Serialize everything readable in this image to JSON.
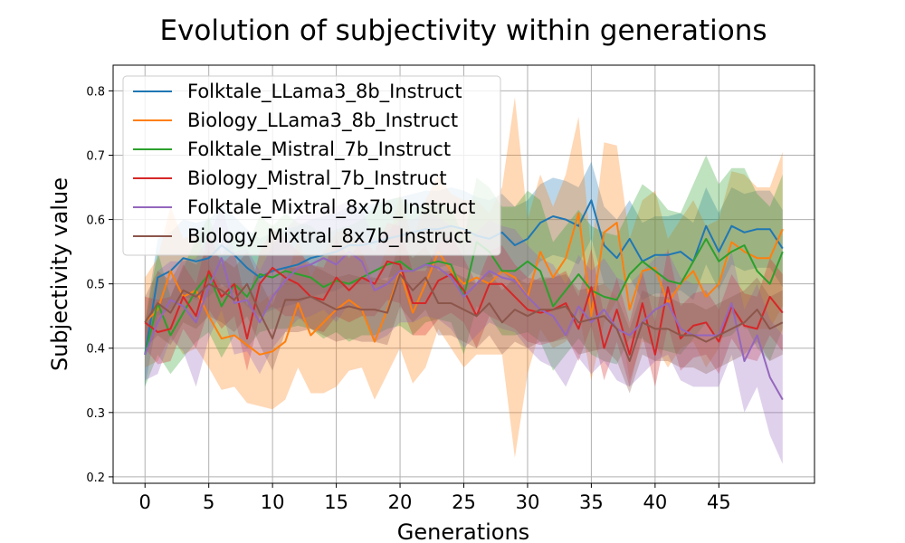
{
  "chart_data": {
    "type": "line",
    "title": "Evolution of subjectivity within generations",
    "xlabel": "Generations",
    "ylabel": "Subjectivity value",
    "xlim": [
      -2.5,
      52.5
    ],
    "ylim": [
      0.19,
      0.84
    ],
    "xticks": [
      0,
      5,
      10,
      15,
      20,
      25,
      30,
      35,
      40,
      45
    ],
    "yticks": [
      0.2,
      0.3,
      0.4,
      0.5,
      0.6,
      0.7,
      0.8
    ],
    "grid": true,
    "legend_position": "top-left",
    "x": [
      0,
      1,
      2,
      3,
      4,
      5,
      6,
      7,
      8,
      9,
      10,
      11,
      12,
      13,
      14,
      15,
      16,
      17,
      18,
      19,
      20,
      21,
      22,
      23,
      24,
      25,
      26,
      27,
      28,
      29,
      30,
      31,
      32,
      33,
      34,
      35,
      36,
      37,
      38,
      39,
      40,
      41,
      42,
      43,
      44,
      45,
      46,
      47,
      48,
      49,
      50
    ],
    "series": [
      {
        "name": "Folktale_LLama3_8b_Instruct",
        "color": "#1f77b4",
        "values": [
          0.39,
          0.51,
          0.52,
          0.54,
          0.535,
          0.54,
          0.56,
          0.545,
          0.525,
          0.51,
          0.52,
          0.525,
          0.53,
          0.54,
          0.545,
          0.55,
          0.56,
          0.56,
          0.565,
          0.57,
          0.575,
          0.58,
          0.585,
          0.585,
          0.59,
          0.585,
          0.575,
          0.57,
          0.58,
          0.56,
          0.57,
          0.595,
          0.605,
          0.6,
          0.59,
          0.63,
          0.56,
          0.54,
          0.57,
          0.535,
          0.545,
          0.545,
          0.55,
          0.535,
          0.59,
          0.55,
          0.59,
          0.58,
          0.585,
          0.585,
          0.555
        ],
        "band": [
          0.05,
          0.06,
          0.06,
          0.06,
          0.06,
          0.06,
          0.06,
          0.06,
          0.06,
          0.06,
          0.06,
          0.06,
          0.06,
          0.06,
          0.06,
          0.06,
          0.06,
          0.06,
          0.06,
          0.06,
          0.06,
          0.06,
          0.06,
          0.06,
          0.06,
          0.06,
          0.06,
          0.06,
          0.06,
          0.06,
          0.06,
          0.06,
          0.06,
          0.06,
          0.06,
          0.06,
          0.06,
          0.06,
          0.06,
          0.06,
          0.06,
          0.06,
          0.06,
          0.06,
          0.06,
          0.06,
          0.06,
          0.06,
          0.06,
          0.06,
          0.06
        ]
      },
      {
        "name": "Biology_LLama3_8b_Instruct",
        "color": "#ff7f0e",
        "values": [
          0.44,
          0.46,
          0.52,
          0.48,
          0.49,
          0.45,
          0.415,
          0.42,
          0.405,
          0.39,
          0.395,
          0.41,
          0.47,
          0.42,
          0.44,
          0.46,
          0.475,
          0.46,
          0.41,
          0.46,
          0.52,
          0.455,
          0.5,
          0.55,
          0.52,
          0.5,
          0.51,
          0.5,
          0.52,
          0.51,
          0.48,
          0.55,
          0.51,
          0.54,
          0.61,
          0.45,
          0.58,
          0.595,
          0.46,
          0.52,
          0.525,
          0.47,
          0.5,
          0.52,
          0.48,
          0.5,
          0.565,
          0.55,
          0.54,
          0.54,
          0.585
        ],
        "band": [
          0.07,
          0.08,
          0.1,
          0.09,
          0.09,
          0.08,
          0.08,
          0.08,
          0.09,
          0.08,
          0.09,
          0.09,
          0.1,
          0.09,
          0.11,
          0.12,
          0.11,
          0.09,
          0.09,
          0.1,
          0.12,
          0.11,
          0.13,
          0.12,
          0.12,
          0.13,
          0.12,
          0.11,
          0.13,
          0.28,
          0.12,
          0.12,
          0.11,
          0.13,
          0.15,
          0.1,
          0.14,
          0.12,
          0.11,
          0.11,
          0.12,
          0.1,
          0.1,
          0.11,
          0.11,
          0.1,
          0.11,
          0.12,
          0.11,
          0.11,
          0.12
        ]
      },
      {
        "name": "Folktale_Mistral_7b_Instruct",
        "color": "#2ca02c",
        "values": [
          0.39,
          0.47,
          0.42,
          0.455,
          0.49,
          0.515,
          0.465,
          0.5,
          0.48,
          0.515,
          0.51,
          0.52,
          0.515,
          0.51,
          0.495,
          0.505,
          0.5,
          0.51,
          0.52,
          0.53,
          0.535,
          0.52,
          0.53,
          0.535,
          0.53,
          0.48,
          0.565,
          0.55,
          0.52,
          0.52,
          0.535,
          0.52,
          0.465,
          0.49,
          0.515,
          0.49,
          0.48,
          0.475,
          0.515,
          0.535,
          0.52,
          0.505,
          0.5,
          0.535,
          0.57,
          0.535,
          0.55,
          0.56,
          0.52,
          0.5,
          0.55
        ],
        "band": [
          0.05,
          0.08,
          0.06,
          0.07,
          0.08,
          0.09,
          0.08,
          0.08,
          0.08,
          0.09,
          0.08,
          0.09,
          0.08,
          0.08,
          0.08,
          0.08,
          0.09,
          0.09,
          0.1,
          0.1,
          0.1,
          0.1,
          0.09,
          0.09,
          0.09,
          0.09,
          0.1,
          0.1,
          0.1,
          0.1,
          0.11,
          0.11,
          0.1,
          0.1,
          0.1,
          0.1,
          0.1,
          0.1,
          0.1,
          0.12,
          0.12,
          0.11,
          0.11,
          0.12,
          0.13,
          0.12,
          0.13,
          0.12,
          0.12,
          0.12,
          0.12
        ]
      },
      {
        "name": "Biology_Mistral_7b_Instruct",
        "color": "#d62728",
        "values": [
          0.44,
          0.425,
          0.43,
          0.48,
          0.45,
          0.52,
          0.48,
          0.5,
          0.415,
          0.5,
          0.525,
          0.51,
          0.5,
          0.48,
          0.475,
          0.51,
          0.49,
          0.51,
          0.5,
          0.535,
          0.53,
          0.47,
          0.47,
          0.505,
          0.515,
          0.49,
          0.45,
          0.5,
          0.5,
          0.48,
          0.46,
          0.455,
          0.46,
          0.47,
          0.43,
          0.495,
          0.4,
          0.46,
          0.39,
          0.47,
          0.39,
          0.495,
          0.415,
          0.435,
          0.44,
          0.41,
          0.465,
          0.435,
          0.43,
          0.48,
          0.455
        ],
        "band": [
          0.04,
          0.05,
          0.05,
          0.05,
          0.05,
          0.06,
          0.05,
          0.05,
          0.05,
          0.05,
          0.06,
          0.06,
          0.05,
          0.05,
          0.05,
          0.06,
          0.05,
          0.06,
          0.05,
          0.06,
          0.06,
          0.05,
          0.05,
          0.06,
          0.06,
          0.05,
          0.05,
          0.05,
          0.06,
          0.05,
          0.05,
          0.05,
          0.05,
          0.05,
          0.05,
          0.06,
          0.05,
          0.05,
          0.05,
          0.05,
          0.05,
          0.06,
          0.05,
          0.05,
          0.05,
          0.05,
          0.05,
          0.05,
          0.05,
          0.06,
          0.06
        ]
      },
      {
        "name": "Folktale_Mixtral_8x7b_Instruct",
        "color": "#9467bd",
        "values": [
          0.39,
          0.44,
          0.475,
          0.465,
          0.44,
          0.495,
          0.54,
          0.47,
          0.475,
          0.44,
          0.48,
          0.505,
          0.525,
          0.53,
          0.54,
          0.53,
          0.55,
          0.535,
          0.49,
          0.5,
          0.52,
          0.52,
          0.53,
          0.525,
          0.51,
          0.48,
          0.5,
          0.52,
          0.51,
          0.505,
          0.48,
          0.46,
          0.45,
          0.42,
          0.465,
          0.44,
          0.46,
          0.43,
          0.42,
          0.44,
          0.46,
          0.47,
          0.43,
          0.42,
          0.42,
          0.42,
          0.47,
          0.38,
          0.42,
          0.355,
          0.32
        ],
        "band": [
          0.04,
          0.08,
          0.06,
          0.07,
          0.1,
          0.08,
          0.08,
          0.08,
          0.08,
          0.08,
          0.08,
          0.08,
          0.08,
          0.08,
          0.08,
          0.09,
          0.08,
          0.08,
          0.08,
          0.08,
          0.08,
          0.08,
          0.08,
          0.08,
          0.08,
          0.08,
          0.08,
          0.08,
          0.08,
          0.08,
          0.08,
          0.08,
          0.08,
          0.08,
          0.08,
          0.08,
          0.08,
          0.08,
          0.08,
          0.08,
          0.08,
          0.08,
          0.08,
          0.08,
          0.08,
          0.08,
          0.08,
          0.08,
          0.08,
          0.09,
          0.1
        ]
      },
      {
        "name": "Biology_Mixtral_8x7b_Instruct",
        "color": "#8c564b",
        "values": [
          0.44,
          0.47,
          0.455,
          0.49,
          0.48,
          0.5,
          0.49,
          0.475,
          0.5,
          0.455,
          0.415,
          0.475,
          0.475,
          0.48,
          0.47,
          0.46,
          0.465,
          0.46,
          0.46,
          0.455,
          0.515,
          0.49,
          0.51,
          0.47,
          0.47,
          0.46,
          0.45,
          0.47,
          0.44,
          0.46,
          0.45,
          0.46,
          0.46,
          0.465,
          0.44,
          0.445,
          0.45,
          0.43,
          0.38,
          0.44,
          0.43,
          0.43,
          0.42,
          0.42,
          0.41,
          0.42,
          0.43,
          0.44,
          0.46,
          0.43,
          0.44
        ],
        "band": [
          0.04,
          0.05,
          0.05,
          0.05,
          0.05,
          0.05,
          0.05,
          0.05,
          0.05,
          0.05,
          0.05,
          0.05,
          0.05,
          0.05,
          0.05,
          0.05,
          0.05,
          0.05,
          0.05,
          0.05,
          0.05,
          0.05,
          0.05,
          0.05,
          0.05,
          0.05,
          0.05,
          0.05,
          0.05,
          0.05,
          0.05,
          0.05,
          0.05,
          0.05,
          0.05,
          0.05,
          0.05,
          0.05,
          0.05,
          0.05,
          0.05,
          0.05,
          0.05,
          0.05,
          0.05,
          0.05,
          0.05,
          0.05,
          0.05,
          0.05,
          0.05
        ]
      }
    ]
  }
}
